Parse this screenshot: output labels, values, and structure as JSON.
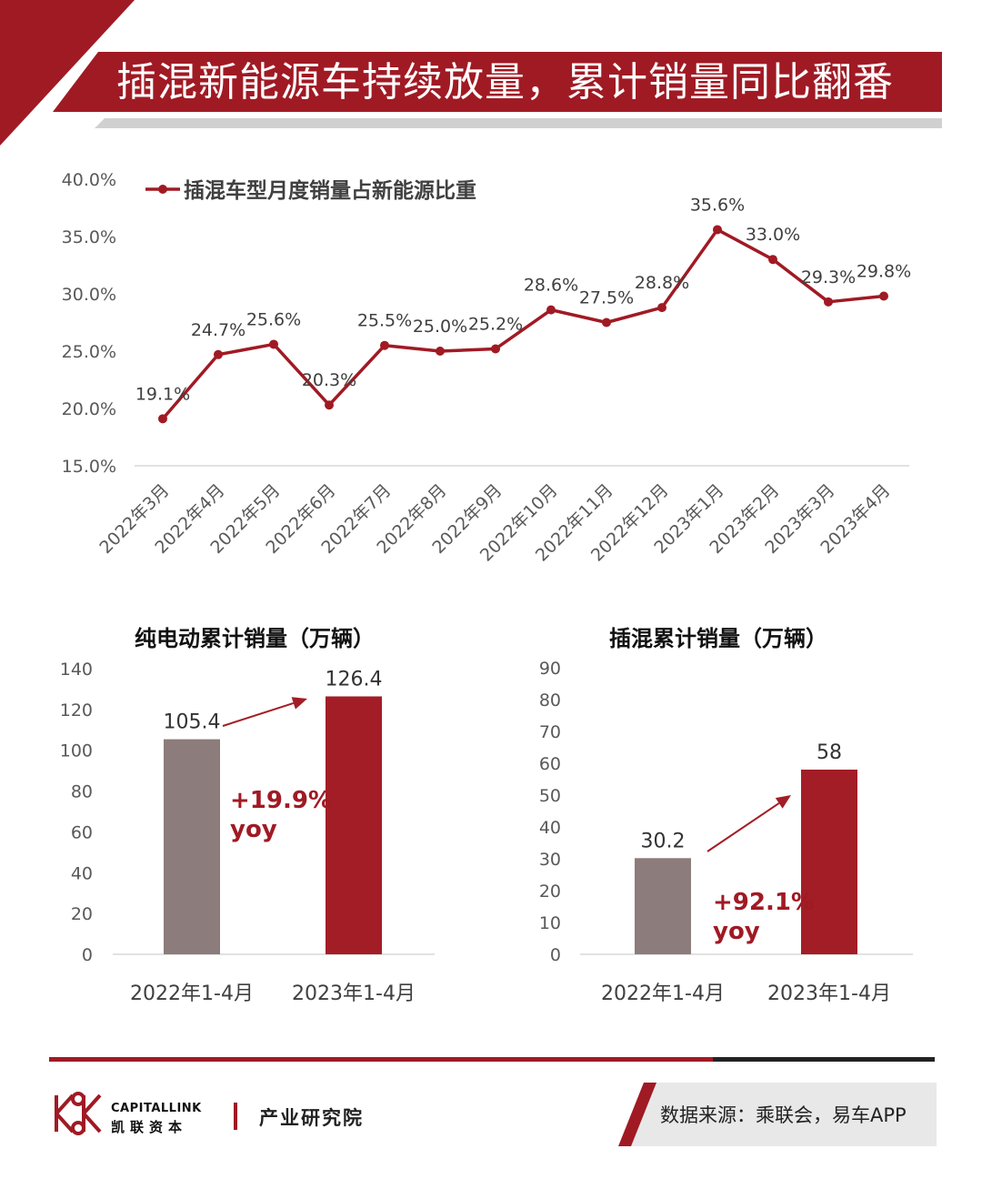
{
  "header": {
    "title": "插混新能源车持续放量，累计销量同比翻番"
  },
  "colors": {
    "brand_red": "#a01a24",
    "bar_grey": "#8c7c7b",
    "bar_red": "#a31d26",
    "gray_stripe": "#d0d0d0"
  },
  "chart_data": [
    {
      "type": "line",
      "title": "",
      "legend_position": "top-left",
      "x": [
        "2022年3月",
        "2022年4月",
        "2022年5月",
        "2022年6月",
        "2022年7月",
        "2022年8月",
        "2022年9月",
        "2022年10月",
        "2022年11月",
        "2022年12月",
        "2023年1月",
        "2023年2月",
        "2023年3月",
        "2023年4月"
      ],
      "series": [
        {
          "name": "插混车型月度销量占新能源比重",
          "values": [
            19.1,
            24.7,
            25.6,
            20.3,
            25.5,
            25.0,
            25.2,
            28.6,
            27.5,
            28.8,
            35.6,
            33.0,
            29.3,
            29.8
          ],
          "labels": [
            "19.1%",
            "24.7%",
            "25.6%",
            "20.3%",
            "25.5%",
            "25.0%",
            "25.2%",
            "28.6%",
            "27.5%",
            "28.8%",
            "35.6%",
            "33.0%",
            "29.3%",
            "29.8%"
          ]
        }
      ],
      "ylim": [
        15,
        40
      ],
      "yticks": [
        15,
        20,
        25,
        30,
        35,
        40
      ],
      "ytick_labels": [
        "15.0%",
        "20.0%",
        "25.0%",
        "30.0%",
        "35.0%",
        "40.0%"
      ],
      "grid": false
    },
    {
      "type": "bar",
      "title": "纯电动累计销量（万辆）",
      "categories": [
        "2022年1-4月",
        "2023年1-4月"
      ],
      "values": [
        105.4,
        126.4
      ],
      "value_labels": [
        "105.4",
        "126.4"
      ],
      "ylim": [
        0,
        140
      ],
      "yticks": [
        0,
        20,
        40,
        60,
        80,
        100,
        120,
        140
      ],
      "ytick_labels": [
        "0",
        "20",
        "40",
        "60",
        "80",
        "100",
        "120",
        "140"
      ],
      "annotation": [
        "+19.9%",
        "yoy"
      ]
    },
    {
      "type": "bar",
      "title": "插混累计销量（万辆）",
      "categories": [
        "2022年1-4月",
        "2023年1-4月"
      ],
      "values": [
        30.2,
        58
      ],
      "value_labels": [
        "30.2",
        "58"
      ],
      "ylim": [
        0,
        90
      ],
      "yticks": [
        0,
        10,
        20,
        30,
        40,
        50,
        60,
        70,
        80,
        90
      ],
      "ytick_labels": [
        "0",
        "10",
        "20",
        "30",
        "40",
        "50",
        "60",
        "70",
        "80",
        "90"
      ],
      "annotation": [
        "+92.1%",
        "yoy"
      ]
    }
  ],
  "footer": {
    "brand_en": "CAPITALLINK",
    "brand_cn": "凯联资本",
    "department": "产业研究院",
    "source": "数据来源：乘联会，易车APP"
  }
}
